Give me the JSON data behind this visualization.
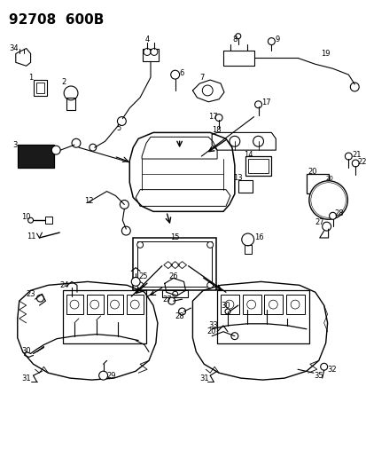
{
  "title": "92708  600B",
  "bg_color": "#ffffff",
  "line_color": "#000000",
  "figsize": [
    4.14,
    5.33
  ],
  "dpi": 100
}
